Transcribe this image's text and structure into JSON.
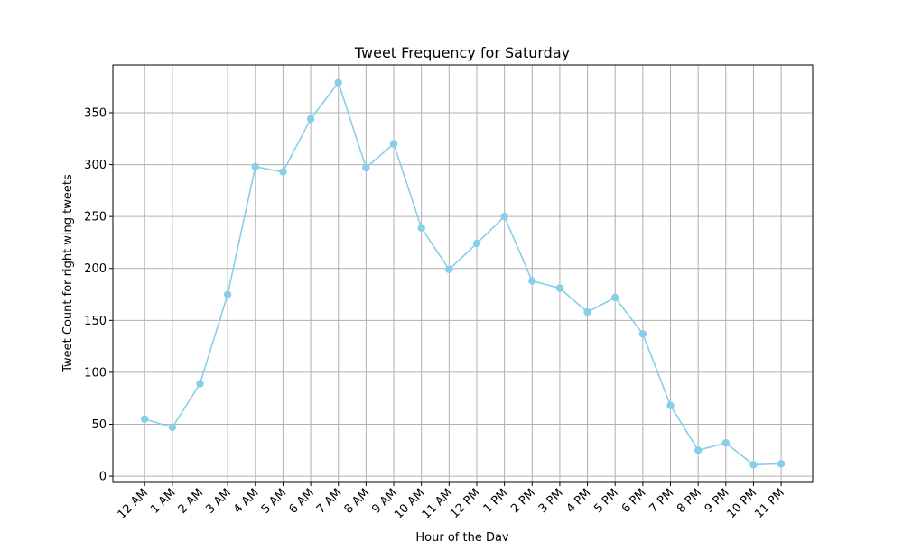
{
  "chart_data": {
    "type": "line",
    "title": "Tweet Frequency for Saturday",
    "xlabel": "Hour of the Day",
    "ylabel": "Tweet Count for right wing tweets",
    "categories": [
      "12 AM",
      "1 AM",
      "2 AM",
      "3 AM",
      "4 AM",
      "5 AM",
      "6 AM",
      "7 AM",
      "8 AM",
      "9 AM",
      "10 AM",
      "11 AM",
      "12 PM",
      "1 PM",
      "2 PM",
      "3 PM",
      "4 PM",
      "5 PM",
      "6 PM",
      "7 PM",
      "8 PM",
      "9 PM",
      "10 PM",
      "11 PM"
    ],
    "series": [
      {
        "values": [
          55,
          47,
          89,
          175,
          298,
          293,
          344,
          379,
          297,
          320,
          239,
          199,
          224,
          250,
          188,
          181,
          158,
          172,
          137,
          68,
          25,
          32,
          11,
          12
        ]
      }
    ],
    "ylim": [
      -6,
      396
    ],
    "yticks": [
      0,
      50,
      100,
      150,
      200,
      250,
      300,
      350
    ],
    "grid": true,
    "line_color": "#87CEEB"
  }
}
